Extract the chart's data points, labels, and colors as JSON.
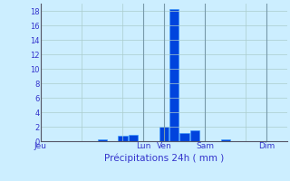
{
  "xlabel": "Précipitations 24h ( mm )",
  "background_color": "#cceeff",
  "bar_color": "#0044dd",
  "bar_edge_color": "#3399ff",
  "grid_color": "#aacccc",
  "text_color": "#3333cc",
  "ylim": [
    0,
    19
  ],
  "yticks": [
    0,
    2,
    4,
    6,
    8,
    10,
    12,
    14,
    16,
    18
  ],
  "xlim": [
    0,
    48
  ],
  "x_day_labels": [
    {
      "label": "Jeu",
      "x": 0
    },
    {
      "label": "Lun",
      "x": 20
    },
    {
      "label": "Ven",
      "x": 24
    },
    {
      "label": "Sam",
      "x": 32
    },
    {
      "label": "Dim",
      "x": 44
    }
  ],
  "day_vlines": [
    0,
    8,
    16,
    24,
    32,
    40,
    48
  ],
  "bars": [
    {
      "x": 12,
      "height": 0.3
    },
    {
      "x": 16,
      "height": 0.75
    },
    {
      "x": 18,
      "height": 0.85
    },
    {
      "x": 24,
      "height": 2.0
    },
    {
      "x": 26,
      "height": 18.3
    },
    {
      "x": 28,
      "height": 1.1
    },
    {
      "x": 30,
      "height": 1.55
    },
    {
      "x": 36,
      "height": 0.3
    }
  ],
  "bar_width": 1.8
}
